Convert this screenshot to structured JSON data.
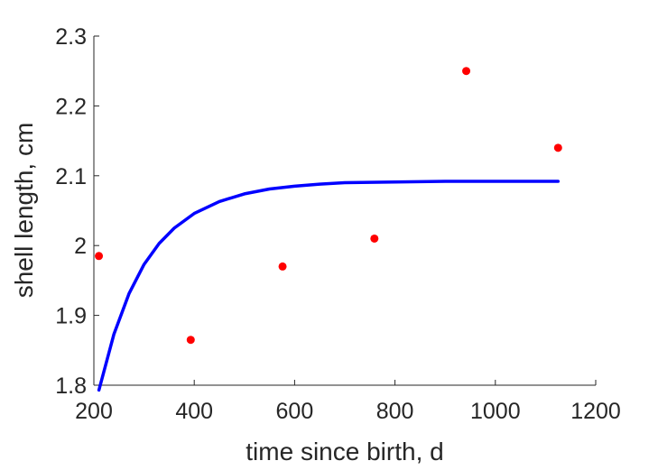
{
  "chart_data": {
    "type": "scatter",
    "title": "",
    "xlabel": "time since birth, d",
    "ylabel": "shell length, cm",
    "xlim": [
      200,
      1200
    ],
    "ylim": [
      1.8,
      2.3
    ],
    "x_ticks": [
      200,
      400,
      600,
      800,
      1000,
      1200
    ],
    "y_ticks": [
      1.8,
      1.9,
      2.0,
      2.1,
      2.2,
      2.3
    ],
    "x_tick_labels": [
      "200",
      "400",
      "600",
      "800",
      "1000",
      "1200"
    ],
    "y_tick_labels": [
      "1.8",
      "1.9",
      "2",
      "2.1",
      "2.2",
      "2.3"
    ],
    "grid": false,
    "legend": "none",
    "series": [
      {
        "kind": "points",
        "color": "#ff0000",
        "x": [
          210,
          393,
          576,
          759,
          942,
          1125
        ],
        "y": [
          1.985,
          1.865,
          1.97,
          2.01,
          2.25,
          2.14
        ]
      },
      {
        "kind": "line",
        "color": "#0000ff",
        "x": [
          210,
          240,
          270,
          300,
          330,
          360,
          400,
          450,
          500,
          550,
          600,
          650,
          700,
          800,
          900,
          1000,
          1125
        ],
        "y": [
          1.793,
          1.873,
          1.931,
          1.973,
          2.003,
          2.025,
          2.046,
          2.063,
          2.074,
          2.081,
          2.085,
          2.088,
          2.09,
          2.091,
          2.092,
          2.092,
          2.092
        ]
      }
    ]
  }
}
